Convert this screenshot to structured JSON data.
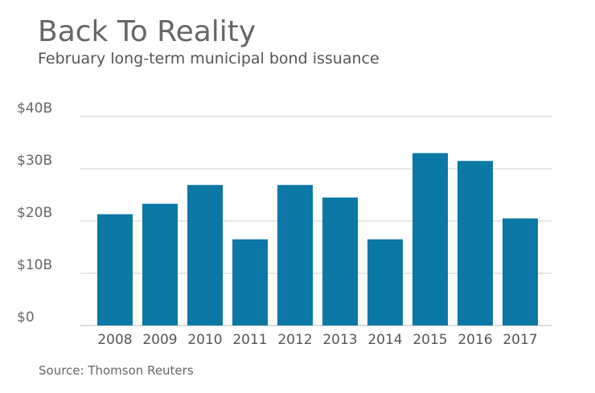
{
  "header": {
    "title": "Back To Reality",
    "subtitle": "February long-term municipal bond issuance"
  },
  "footer": {
    "source": "Source: Thomson Reuters"
  },
  "colors": {
    "bar": "#0b78a6",
    "grid": "#cccccc",
    "baseline": "#bbbbbb"
  },
  "chart_data": {
    "type": "bar",
    "categories": [
      "2008",
      "2009",
      "2010",
      "2011",
      "2012",
      "2013",
      "2014",
      "2015",
      "2016",
      "2017"
    ],
    "values": [
      21.3,
      23.3,
      26.9,
      16.5,
      26.9,
      24.5,
      16.5,
      33.0,
      31.5,
      20.5
    ],
    "title": "Back To Reality",
    "subtitle": "February long-term municipal bond issuance",
    "ylim": [
      0,
      40
    ],
    "yticks": [
      0,
      10,
      20,
      30,
      40
    ],
    "ytick_labels": [
      "$0",
      "$10B",
      "$20B",
      "$30B",
      "$40B"
    ],
    "grid": true,
    "legend": "none"
  }
}
